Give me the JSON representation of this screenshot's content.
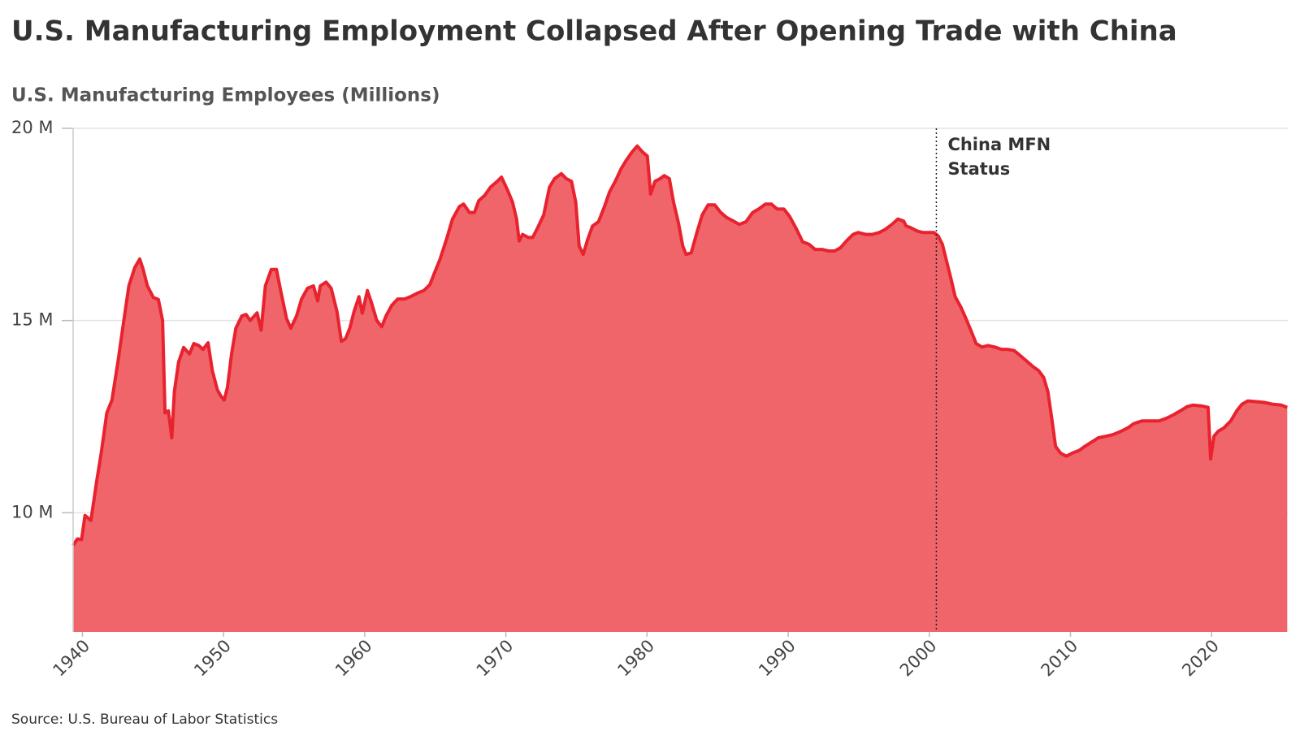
{
  "chart_data": {
    "type": "area",
    "title": "U.S. Manufacturing Employment Collapsed After Opening Trade with China",
    "y_label": "U.S. Manufacturing Employees (Millions)",
    "source": "Source: U.S. Bureau of Labor Statistics",
    "annotation": {
      "lines": [
        "China MFN",
        "Status"
      ],
      "x": 2000.5
    },
    "color": "#e8222e",
    "fill_color": "#f06569",
    "grid": true,
    "xlim": [
      1939.34,
      2025.4
    ],
    "ylim": [
      6.9,
      20
    ],
    "xticks": [
      1940,
      1950,
      1960,
      1970,
      1980,
      1990,
      2000,
      2010,
      2020
    ],
    "yticks": [
      {
        "value": 10,
        "label": "10 M"
      },
      {
        "value": 15,
        "label": "15 M"
      },
      {
        "value": 20,
        "label": "20 M"
      }
    ],
    "x": [
      1939.34,
      1939.64,
      1939.94,
      1940.18,
      1940.6,
      1941.02,
      1941.31,
      1941.73,
      1942.09,
      1942.51,
      1942.93,
      1943.29,
      1943.7,
      1944.06,
      1944.3,
      1944.6,
      1945.02,
      1945.38,
      1945.68,
      1945.85,
      1946.09,
      1946.33,
      1946.51,
      1946.81,
      1947.17,
      1947.59,
      1947.89,
      1948.24,
      1948.54,
      1948.9,
      1949.2,
      1949.56,
      1949.8,
      1950.04,
      1950.27,
      1950.57,
      1950.87,
      1951.29,
      1951.59,
      1951.89,
      1952.37,
      1952.66,
      1952.96,
      1953.38,
      1953.74,
      1954.04,
      1954.46,
      1954.76,
      1955.17,
      1955.53,
      1955.95,
      1956.37,
      1956.67,
      1956.85,
      1957.26,
      1957.62,
      1958.04,
      1958.34,
      1958.64,
      1958.94,
      1959.24,
      1959.59,
      1959.83,
      1960.19,
      1960.49,
      1960.85,
      1961.21,
      1961.51,
      1961.92,
      1962.34,
      1962.82,
      1963.24,
      1963.72,
      1964.19,
      1964.61,
      1964.91,
      1965.33,
      1965.81,
      1966.22,
      1966.7,
      1967.0,
      1967.42,
      1967.78,
      1968.08,
      1968.49,
      1968.91,
      1969.39,
      1969.69,
      1970.11,
      1970.47,
      1970.76,
      1970.94,
      1971.18,
      1971.6,
      1971.9,
      1972.26,
      1972.68,
      1973.09,
      1973.45,
      1973.93,
      1974.29,
      1974.65,
      1974.95,
      1975.19,
      1975.48,
      1975.78,
      1976.14,
      1976.56,
      1976.98,
      1977.34,
      1977.75,
      1978.17,
      1978.53,
      1978.95,
      1979.31,
      1979.67,
      1980.02,
      1980.26,
      1980.56,
      1980.92,
      1981.22,
      1981.58,
      1981.88,
      1982.23,
      1982.53,
      1982.77,
      1983.13,
      1983.55,
      1983.91,
      1984.33,
      1984.8,
      1985.22,
      1985.64,
      1986.12,
      1986.54,
      1987.01,
      1987.49,
      1987.91,
      1988.39,
      1988.81,
      1989.22,
      1989.7,
      1990.12,
      1990.6,
      1991.02,
      1991.49,
      1991.91,
      1992.39,
      1992.87,
      1993.29,
      1993.7,
      1994.18,
      1994.6,
      1994.96,
      1995.5,
      1995.97,
      1996.45,
      1996.87,
      1997.35,
      1997.77,
      1998.18,
      1998.36,
      1998.66,
      1999.14,
      1999.56,
      1999.98,
      2000.33,
      2000.63,
      2000.93,
      2001.23,
      2001.53,
      2001.83,
      2002.25,
      2002.6,
      2002.96,
      2003.32,
      2003.74,
      2004.16,
      2004.64,
      2005.11,
      2005.53,
      2006.01,
      2006.43,
      2006.85,
      2007.32,
      2007.74,
      2008.1,
      2008.4,
      2008.7,
      2008.94,
      2009.3,
      2009.71,
      2010.13,
      2010.61,
      2011.03,
      2011.51,
      2011.98,
      2012.52,
      2013.0,
      2013.6,
      2014.07,
      2014.49,
      2015.09,
      2015.69,
      2016.28,
      2016.88,
      2017.36,
      2017.78,
      2018.26,
      2018.67,
      2019.27,
      2019.75,
      2019.93,
      2020.17,
      2020.47,
      2020.88,
      2021.36,
      2021.78,
      2022.14,
      2022.56,
      2023.15,
      2023.75,
      2024.35,
      2024.95,
      2025.36
    ],
    "values": [
      9.15,
      9.32,
      9.3,
      9.93,
      9.8,
      10.85,
      11.5,
      12.6,
      12.93,
      13.92,
      15.0,
      15.9,
      16.37,
      16.6,
      16.33,
      15.9,
      15.6,
      15.55,
      15.0,
      12.6,
      12.65,
      11.95,
      13.15,
      13.92,
      14.3,
      14.13,
      14.4,
      14.35,
      14.25,
      14.42,
      13.7,
      13.2,
      13.04,
      12.93,
      13.26,
      14.14,
      14.8,
      15.12,
      15.16,
      15.0,
      15.2,
      14.75,
      15.9,
      16.33,
      16.33,
      15.78,
      15.05,
      14.8,
      15.12,
      15.56,
      15.84,
      15.9,
      15.51,
      15.9,
      16.0,
      15.84,
      15.23,
      14.46,
      14.53,
      14.8,
      15.23,
      15.62,
      15.19,
      15.78,
      15.45,
      15.0,
      14.84,
      15.12,
      15.4,
      15.56,
      15.56,
      15.62,
      15.71,
      15.78,
      15.93,
      16.21,
      16.59,
      17.13,
      17.64,
      17.96,
      18.03,
      17.81,
      17.81,
      18.12,
      18.25,
      18.47,
      18.62,
      18.73,
      18.4,
      18.08,
      17.64,
      17.07,
      17.24,
      17.16,
      17.16,
      17.42,
      17.75,
      18.47,
      18.69,
      18.82,
      18.69,
      18.62,
      18.08,
      16.94,
      16.72,
      17.09,
      17.46,
      17.57,
      17.96,
      18.34,
      18.62,
      18.95,
      19.17,
      19.39,
      19.54,
      19.39,
      19.28,
      18.29,
      18.62,
      18.69,
      18.77,
      18.69,
      18.08,
      17.53,
      16.94,
      16.72,
      16.76,
      17.31,
      17.75,
      18.01,
      18.01,
      17.81,
      17.68,
      17.59,
      17.5,
      17.57,
      17.81,
      17.9,
      18.03,
      18.03,
      17.9,
      17.9,
      17.7,
      17.37,
      17.05,
      16.98,
      16.85,
      16.85,
      16.81,
      16.81,
      16.89,
      17.09,
      17.24,
      17.29,
      17.24,
      17.24,
      17.29,
      17.37,
      17.5,
      17.64,
      17.59,
      17.46,
      17.42,
      17.33,
      17.29,
      17.29,
      17.29,
      17.2,
      16.98,
      16.54,
      16.1,
      15.62,
      15.34,
      15.05,
      14.73,
      14.4,
      14.31,
      14.35,
      14.31,
      14.25,
      14.25,
      14.22,
      14.09,
      13.96,
      13.81,
      13.7,
      13.52,
      13.15,
      12.39,
      11.73,
      11.55,
      11.47,
      11.55,
      11.62,
      11.73,
      11.84,
      11.95,
      11.99,
      12.03,
      12.12,
      12.21,
      12.32,
      12.39,
      12.39,
      12.39,
      12.47,
      12.56,
      12.65,
      12.76,
      12.8,
      12.78,
      12.74,
      11.4,
      11.99,
      12.12,
      12.21,
      12.39,
      12.65,
      12.82,
      12.91,
      12.89,
      12.87,
      12.82,
      12.8,
      12.74
    ]
  }
}
